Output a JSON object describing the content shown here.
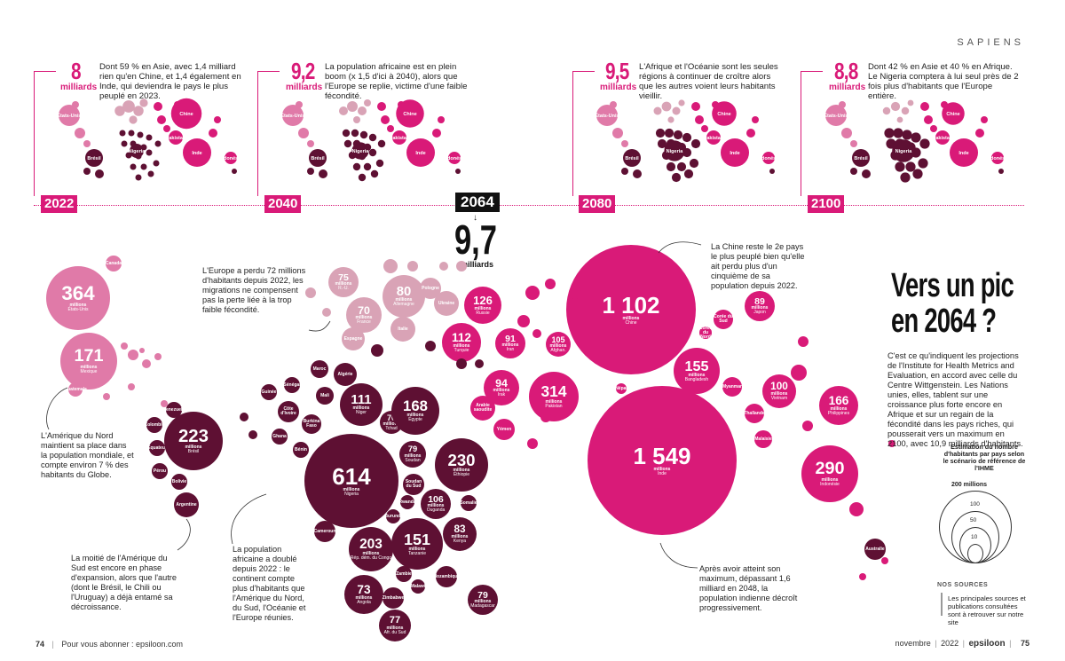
{
  "header": {
    "section": "SAPIENS"
  },
  "timeline": [
    {
      "year": "2022",
      "pop": "8",
      "unit": "milliards",
      "text": "Dont 59 % en Asie, avec 1,4 milliard rien qu'en Chine, et 1,4 également en Inde, qui deviendra le pays le plus peuplé en 2023."
    },
    {
      "year": "2040",
      "pop": "9,2",
      "unit": "milliards",
      "text": "La population africaine est en plein boom (x 1,5 d'ici à 2040), alors que l'Europe se replie, victime d'une faible fécondité."
    },
    {
      "year": "2080",
      "pop": "9,5",
      "unit": "milliards",
      "text": "L'Afrique et l'Océanie sont les seules régions à continuer de croître alors que les autres voient leurs habitants vieillir."
    },
    {
      "year": "2100",
      "pop": "8,8",
      "unit": "milliards",
      "text": "Dont 42 % en Asie et 40 % en Afrique. Le Nigeria comptera à lui seul près de 2 fois plus d'habitants que l'Europe entière."
    }
  ],
  "mini_labels": {
    "usa": "États-Unis",
    "brazil": "Brésil",
    "nigeria": "Nigeria",
    "china": "Chine",
    "india": "Inde",
    "pakistan": "Pakistan",
    "indonesia": "Indonésie"
  },
  "peak": {
    "year": "2064",
    "pop": "9,7",
    "unit": "milliards"
  },
  "title": "Vers un pic en 2064 ?",
  "intro": "C'est ce qu'indiquent les projections de l'Institute for Health Metrics and Evaluation, en accord avec celle du Centre Wittgenstein. Les Nations unies, elles, tablent sur une croissance plus forte encore en Afrique et sur un regain de la fécondité dans les pays riches, qui pousserait vers un maximum en 2100, avec 10,9 milliards d'habitants.",
  "legend": {
    "title": "Estimation du nombre d'habitants par pays selon le scénario de référence de l'IHME",
    "max_label": "200 millions",
    "values": [
      "100",
      "50",
      "10"
    ]
  },
  "sources": {
    "title": "NOS SOURCES",
    "text": "Les principales sources et publications consultées sont à retrouver sur notre site"
  },
  "annotations": {
    "china": "La Chine reste le 2e pays le plus peuplé bien qu'elle ait perdu plus d'un cinquième de sa population depuis 2022.",
    "europe": "L'Europe a perdu 72 millions d'habitants depuis 2022, les migrations ne compensent pas la perte liée à la trop faible fécondité.",
    "north_america": "L'Amérique du Nord maintient sa place dans la population mondiale, et compte environ 7 % des habitants du Globe.",
    "south_america": "La moitié de l'Amérique du Sud est encore en phase d'expansion, alors que l'autre (dont le Brésil, le Chili ou l'Uruguay) a déjà entamé sa décroissance.",
    "africa": "La population africaine a doublé depuis 2022 : le continent compte plus d'habitants que l'Amérique du Nord, du Sud, l'Océanie et l'Europe réunies.",
    "india": "Après avoir atteint son maximum, dépassant 1,6 milliard en 2048, la population indienne décroît progressivement."
  },
  "footer": {
    "left_page": "74",
    "left_text": "Pour vous abonner : epsiloon.com",
    "right_date": "novembre",
    "right_year": "2022",
    "brand": "epsiloon",
    "right_page": "75"
  },
  "colors": {
    "pink": "#d91a78",
    "light_pink": "#e07aa8",
    "pale_pink": "#d9a3b6",
    "dark": "#5e1033"
  },
  "bubbles": [
    {
      "name": "Canada",
      "value": "",
      "region": "americas"
    },
    {
      "name": "États-Unis",
      "value": "364",
      "region": "americas"
    },
    {
      "name": "Mexique",
      "value": "171",
      "region": "americas"
    },
    {
      "name": "Guatemala",
      "value": "",
      "region": "americas"
    },
    {
      "name": "Venezuela",
      "value": "",
      "region": "southam"
    },
    {
      "name": "Colombie",
      "value": "",
      "region": "southam"
    },
    {
      "name": "Équateur",
      "value": "",
      "region": "southam"
    },
    {
      "name": "Brésil",
      "value": "223",
      "region": "southam"
    },
    {
      "name": "Pérou",
      "value": "",
      "region": "southam"
    },
    {
      "name": "Bolivie",
      "value": "",
      "region": "southam"
    },
    {
      "name": "Argentine",
      "value": "",
      "region": "southam"
    },
    {
      "name": "R.-U.",
      "value": "75",
      "region": "europe"
    },
    {
      "name": "France",
      "value": "70",
      "region": "europe"
    },
    {
      "name": "Allemagne",
      "value": "80",
      "region": "europe"
    },
    {
      "name": "Pologne",
      "value": "",
      "region": "europe"
    },
    {
      "name": "Ukraine",
      "value": "",
      "region": "europe"
    },
    {
      "name": "Espagne",
      "value": "",
      "region": "europe"
    },
    {
      "name": "Italie",
      "value": "",
      "region": "europe"
    },
    {
      "name": "Russie",
      "value": "126",
      "region": "asia"
    },
    {
      "name": "Turquie",
      "value": "112",
      "region": "asia"
    },
    {
      "name": "Iran",
      "value": "91",
      "region": "asia"
    },
    {
      "name": "Irak",
      "value": "94",
      "region": "asia"
    },
    {
      "name": "Afghan.",
      "value": "105",
      "region": "asia"
    },
    {
      "name": "Arabie saoudite",
      "value": "",
      "region": "asia"
    },
    {
      "name": "Yémen",
      "value": "",
      "region": "asia"
    },
    {
      "name": "Chine",
      "value": "1 102",
      "region": "asia"
    },
    {
      "name": "Pakistan",
      "value": "314",
      "region": "asia"
    },
    {
      "name": "Népal",
      "value": "",
      "region": "asia"
    },
    {
      "name": "Inde",
      "value": "1 549",
      "region": "asia"
    },
    {
      "name": "Bangladesh",
      "value": "155",
      "region": "asia"
    },
    {
      "name": "Corée du Nord",
      "value": "",
      "region": "asia"
    },
    {
      "name": "Corée du Sud",
      "value": "",
      "region": "asia"
    },
    {
      "name": "Japon",
      "value": "89",
      "region": "asia"
    },
    {
      "name": "Myanmar",
      "value": "",
      "region": "asia"
    },
    {
      "name": "Vietnam",
      "value": "100",
      "region": "asia"
    },
    {
      "name": "Thaïlande",
      "value": "",
      "region": "asia"
    },
    {
      "name": "Malaisie",
      "value": "",
      "region": "asia"
    },
    {
      "name": "Philippines",
      "value": "166",
      "region": "asia"
    },
    {
      "name": "Indonésie",
      "value": "290",
      "region": "asia"
    },
    {
      "name": "Australie",
      "value": "",
      "region": "oceania"
    },
    {
      "name": "Maroc",
      "value": "",
      "region": "africa"
    },
    {
      "name": "Algérie",
      "value": "",
      "region": "africa"
    },
    {
      "name": "Sénégal",
      "value": "",
      "region": "africa"
    },
    {
      "name": "Guinée",
      "value": "",
      "region": "africa"
    },
    {
      "name": "Mali",
      "value": "",
      "region": "africa"
    },
    {
      "name": "Côte d'Ivoire",
      "value": "",
      "region": "africa"
    },
    {
      "name": "Burkina Faso",
      "value": "",
      "region": "africa"
    },
    {
      "name": "Ghana",
      "value": "",
      "region": "africa"
    },
    {
      "name": "Bénin",
      "value": "",
      "region": "africa"
    },
    {
      "name": "Niger",
      "value": "111",
      "region": "africa"
    },
    {
      "name": "Tchad",
      "value": "70",
      "region": "africa"
    },
    {
      "name": "Égypte",
      "value": "168",
      "region": "africa"
    },
    {
      "name": "Soudan",
      "value": "79",
      "region": "africa"
    },
    {
      "name": "Nigeria",
      "value": "614",
      "region": "africa"
    },
    {
      "name": "Éthiopie",
      "value": "230",
      "region": "africa"
    },
    {
      "name": "Soudan du Sud",
      "value": "",
      "region": "africa"
    },
    {
      "name": "Cameroun",
      "value": "",
      "region": "africa"
    },
    {
      "name": "Rwanda",
      "value": "",
      "region": "africa"
    },
    {
      "name": "Ouganda",
      "value": "106",
      "region": "africa"
    },
    {
      "name": "Somalie",
      "value": "",
      "region": "africa"
    },
    {
      "name": "Burundi",
      "value": "",
      "region": "africa"
    },
    {
      "name": "Kenya",
      "value": "83",
      "region": "africa"
    },
    {
      "name": "Rép. dém. du Congo",
      "value": "203",
      "region": "africa"
    },
    {
      "name": "Tanzanie",
      "value": "151",
      "region": "africa"
    },
    {
      "name": "Zambie",
      "value": "",
      "region": "africa"
    },
    {
      "name": "Mozambique",
      "value": "",
      "region": "africa"
    },
    {
      "name": "Malawi",
      "value": "",
      "region": "africa"
    },
    {
      "name": "Angola",
      "value": "73",
      "region": "africa"
    },
    {
      "name": "Zimbabwe",
      "value": "",
      "region": "africa"
    },
    {
      "name": "Madagascar",
      "value": "79",
      "region": "africa"
    },
    {
      "name": "Afr. du Sud",
      "value": "77",
      "region": "africa"
    }
  ],
  "bubble_unit": "millions"
}
